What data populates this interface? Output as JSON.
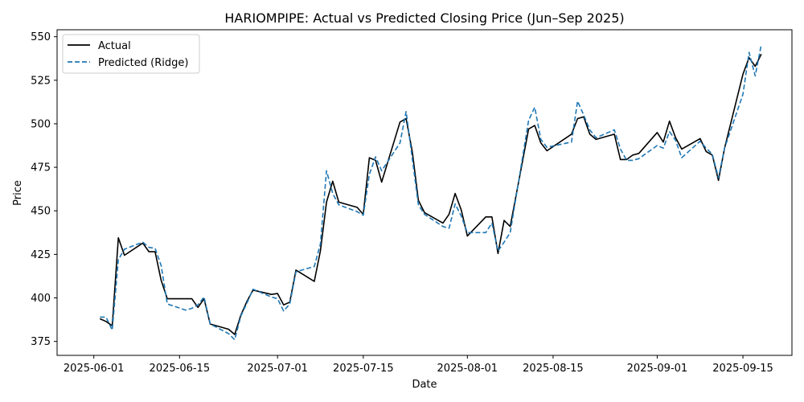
{
  "chart_data": {
    "type": "line",
    "title": "HARIOMPIPE: Actual vs Predicted Closing Price (Jun–Sep 2025)",
    "xlabel": "Date",
    "ylabel": "Price",
    "x_ticks": [
      "2025-06-01",
      "2025-06-15",
      "2025-07-01",
      "2025-07-15",
      "2025-08-01",
      "2025-08-15",
      "2025-09-01",
      "2025-09-15"
    ],
    "y_ticks": [
      375,
      400,
      425,
      450,
      475,
      500,
      525,
      550
    ],
    "xlim": [
      "2025-05-26",
      "2025-09-23"
    ],
    "ylim": [
      367,
      554
    ],
    "grid": false,
    "legend_position": "top-left",
    "series": [
      {
        "name": "Actual",
        "color": "#000000",
        "style": "solid",
        "points": [
          [
            "2025-06-02",
            388
          ],
          [
            "2025-06-03",
            386.5
          ],
          [
            "2025-06-04",
            384
          ],
          [
            "2025-06-05",
            434.5
          ],
          [
            "2025-06-06",
            424.5
          ],
          [
            "2025-06-09",
            431.5
          ],
          [
            "2025-06-10",
            426.5
          ],
          [
            "2025-06-11",
            426.5
          ],
          [
            "2025-06-12",
            410
          ],
          [
            "2025-06-13",
            399.5
          ],
          [
            "2025-06-16",
            399.5
          ],
          [
            "2025-06-17",
            399.5
          ],
          [
            "2025-06-18",
            394.5
          ],
          [
            "2025-06-19",
            399.5
          ],
          [
            "2025-06-20",
            385
          ],
          [
            "2025-06-23",
            382
          ],
          [
            "2025-06-24",
            379
          ],
          [
            "2025-06-25",
            390
          ],
          [
            "2025-06-26",
            398
          ],
          [
            "2025-06-27",
            404.5
          ],
          [
            "2025-06-30",
            402
          ],
          [
            "2025-07-01",
            402.5
          ],
          [
            "2025-07-02",
            396
          ],
          [
            "2025-07-03",
            397.5
          ],
          [
            "2025-07-04",
            416
          ],
          [
            "2025-07-07",
            409.5
          ],
          [
            "2025-07-08",
            427
          ],
          [
            "2025-07-09",
            455
          ],
          [
            "2025-07-10",
            467
          ],
          [
            "2025-07-11",
            455
          ],
          [
            "2025-07-14",
            452
          ],
          [
            "2025-07-15",
            448
          ],
          [
            "2025-07-16",
            480.5
          ],
          [
            "2025-07-17",
            479
          ],
          [
            "2025-07-18",
            466.5
          ],
          [
            "2025-07-21",
            501
          ],
          [
            "2025-07-22",
            503
          ],
          [
            "2025-07-23",
            484
          ],
          [
            "2025-07-24",
            456
          ],
          [
            "2025-07-25",
            449
          ],
          [
            "2025-07-28",
            443
          ],
          [
            "2025-07-29",
            448
          ],
          [
            "2025-07-30",
            460
          ],
          [
            "2025-07-31",
            450.5
          ],
          [
            "2025-08-01",
            435.5
          ],
          [
            "2025-08-04",
            446.5
          ],
          [
            "2025-08-05",
            446.5
          ],
          [
            "2025-08-06",
            425.5
          ],
          [
            "2025-08-07",
            444.5
          ],
          [
            "2025-08-08",
            441
          ],
          [
            "2025-08-11",
            497
          ],
          [
            "2025-08-12",
            499
          ],
          [
            "2025-08-13",
            489
          ],
          [
            "2025-08-14",
            484.5
          ],
          [
            "2025-08-18",
            494
          ],
          [
            "2025-08-19",
            503
          ],
          [
            "2025-08-20",
            504
          ],
          [
            "2025-08-21",
            494
          ],
          [
            "2025-08-22",
            491
          ],
          [
            "2025-08-25",
            494
          ],
          [
            "2025-08-26",
            479.5
          ],
          [
            "2025-08-27",
            479.5
          ],
          [
            "2025-08-28",
            482
          ],
          [
            "2025-08-29",
            483
          ],
          [
            "2025-09-01",
            495
          ],
          [
            "2025-09-02",
            489.5
          ],
          [
            "2025-09-03",
            501.5
          ],
          [
            "2025-09-04",
            492
          ],
          [
            "2025-09-05",
            485.5
          ],
          [
            "2025-09-08",
            491.5
          ],
          [
            "2025-09-09",
            484
          ],
          [
            "2025-09-10",
            482
          ],
          [
            "2025-09-11",
            467.5
          ],
          [
            "2025-09-12",
            486
          ],
          [
            "2025-09-15",
            528.5
          ],
          [
            "2025-09-16",
            538
          ],
          [
            "2025-09-17",
            533
          ],
          [
            "2025-09-18",
            540
          ]
        ]
      },
      {
        "name": "Predicted (Ridge)",
        "color": "#1f77b4",
        "style": "dashed",
        "points": [
          [
            "2025-06-02",
            389
          ],
          [
            "2025-06-03",
            389
          ],
          [
            "2025-06-04",
            381.5
          ],
          [
            "2025-06-05",
            422
          ],
          [
            "2025-06-06",
            428
          ],
          [
            "2025-06-09",
            432
          ],
          [
            "2025-06-10",
            429
          ],
          [
            "2025-06-11",
            428.5
          ],
          [
            "2025-06-12",
            418.5
          ],
          [
            "2025-06-13",
            396.5
          ],
          [
            "2025-06-16",
            393
          ],
          [
            "2025-06-17",
            394
          ],
          [
            "2025-06-18",
            396
          ],
          [
            "2025-06-19",
            400.5
          ],
          [
            "2025-06-20",
            385
          ],
          [
            "2025-06-23",
            379.5
          ],
          [
            "2025-06-24",
            376
          ],
          [
            "2025-06-25",
            389.5
          ],
          [
            "2025-06-26",
            397
          ],
          [
            "2025-06-27",
            405
          ],
          [
            "2025-06-30",
            400.5
          ],
          [
            "2025-07-01",
            399.5
          ],
          [
            "2025-07-02",
            392.5
          ],
          [
            "2025-07-03",
            396.5
          ],
          [
            "2025-07-04",
            415
          ],
          [
            "2025-07-07",
            418
          ],
          [
            "2025-07-08",
            431
          ],
          [
            "2025-07-09",
            473
          ],
          [
            "2025-07-10",
            460
          ],
          [
            "2025-07-11",
            453.5
          ],
          [
            "2025-07-14",
            449.5
          ],
          [
            "2025-07-15",
            447.5
          ],
          [
            "2025-07-16",
            471
          ],
          [
            "2025-07-17",
            481
          ],
          [
            "2025-07-18",
            473
          ],
          [
            "2025-07-21",
            489
          ],
          [
            "2025-07-22",
            507
          ],
          [
            "2025-07-23",
            480
          ],
          [
            "2025-07-24",
            453.5
          ],
          [
            "2025-07-25",
            448
          ],
          [
            "2025-07-28",
            441
          ],
          [
            "2025-07-29",
            440
          ],
          [
            "2025-07-30",
            454
          ],
          [
            "2025-07-31",
            447
          ],
          [
            "2025-08-01",
            437.5
          ],
          [
            "2025-08-04",
            437.5
          ],
          [
            "2025-08-05",
            443
          ],
          [
            "2025-08-06",
            427
          ],
          [
            "2025-08-07",
            432
          ],
          [
            "2025-08-08",
            437.5
          ],
          [
            "2025-08-11",
            502
          ],
          [
            "2025-08-12",
            509.5
          ],
          [
            "2025-08-13",
            491
          ],
          [
            "2025-08-14",
            486.5
          ],
          [
            "2025-08-18",
            489.5
          ],
          [
            "2025-08-19",
            513
          ],
          [
            "2025-08-20",
            505
          ],
          [
            "2025-08-21",
            496.5
          ],
          [
            "2025-08-22",
            492
          ],
          [
            "2025-08-25",
            496.5
          ],
          [
            "2025-08-26",
            485.5
          ],
          [
            "2025-08-27",
            479
          ],
          [
            "2025-08-28",
            479
          ],
          [
            "2025-08-29",
            480
          ],
          [
            "2025-09-01",
            487.5
          ],
          [
            "2025-09-02",
            486
          ],
          [
            "2025-09-03",
            495.5
          ],
          [
            "2025-09-04",
            490.5
          ],
          [
            "2025-09-05",
            480.5
          ],
          [
            "2025-09-08",
            490
          ],
          [
            "2025-09-09",
            486
          ],
          [
            "2025-09-10",
            482.5
          ],
          [
            "2025-09-11",
            469
          ],
          [
            "2025-09-12",
            486
          ],
          [
            "2025-09-15",
            517
          ],
          [
            "2025-09-16",
            541
          ],
          [
            "2025-09-17",
            527.5
          ],
          [
            "2025-09-18",
            545.5
          ]
        ]
      }
    ]
  }
}
